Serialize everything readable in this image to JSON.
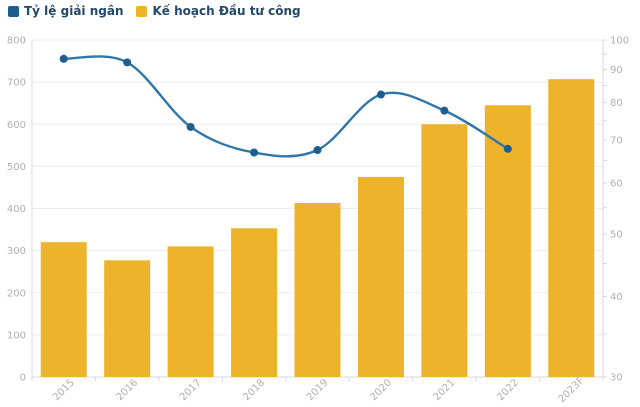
{
  "legend": {
    "items": [
      {
        "label": "Tỷ lệ giải ngân",
        "color": "#1c5f8e"
      },
      {
        "label": "Kế hoạch Đầu tư công",
        "color": "#edb32a"
      }
    ]
  },
  "chart_data": {
    "type": "combo",
    "title": "",
    "categories": [
      "2015",
      "2016",
      "2017",
      "2018",
      "2019",
      "2020",
      "2021",
      "2022",
      "2023F"
    ],
    "series": [
      {
        "name": "Kế hoạch Đầu tư công",
        "type": "bar",
        "yaxis": "left",
        "color": "#edb32a",
        "values": [
          320,
          277,
          310,
          353,
          413,
          475,
          600,
          645,
          707
        ]
      },
      {
        "name": "Tỷ lệ giải ngân",
        "type": "spline",
        "yaxis": "right",
        "color": "#3176a9",
        "marker_color": "#1c5f8e",
        "values": [
          93.5,
          92.3,
          73.3,
          66.9,
          67.5,
          82.3,
          77.7,
          67.8,
          null
        ]
      }
    ],
    "left_axis": {
      "min": 0,
      "max": 800,
      "tick_interval": 100,
      "tick_labels": [
        "0",
        "100",
        "200",
        "300",
        "400",
        "500",
        "600",
        "700",
        "800"
      ]
    },
    "right_axis": {
      "scale": "log",
      "min": 30,
      "max": 100,
      "tick_labels": [
        "100",
        "90",
        "80",
        "70",
        "60",
        "50",
        "40",
        "30"
      ],
      "minor_ticks": [
        35,
        45,
        55,
        65,
        75,
        85,
        95
      ]
    },
    "grid": "horizontal",
    "legend_position": "top-left"
  },
  "colors": {
    "background": "#ffffff",
    "grid": "#ededed",
    "axis_line": "#d9d9d9",
    "axis_text": "#b0b0b0",
    "legend_text": "#25496b"
  }
}
